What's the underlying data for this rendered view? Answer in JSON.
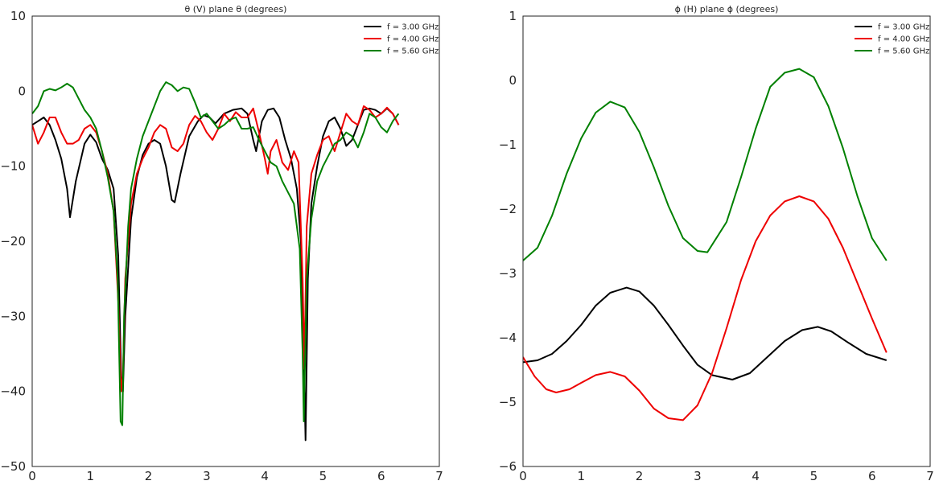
{
  "chart_data": [
    {
      "type": "line",
      "title": "θ (V) plane θ (degrees)",
      "xlabel": "",
      "ylabel": "",
      "xlim": [
        0,
        7
      ],
      "ylim": [
        -50,
        10
      ],
      "xticks": [
        0,
        1,
        2,
        3,
        4,
        5,
        6,
        7
      ],
      "yticks": [
        10,
        0,
        -10,
        -20,
        -30,
        -40,
        -50
      ],
      "xtick_labels": [
        "0",
        "1",
        "2",
        "3",
        "4",
        "5",
        "6",
        "7"
      ],
      "ytick_labels": [
        "10",
        "0",
        "−10",
        "−20",
        "−30",
        "−40",
        "−50"
      ],
      "grid": false,
      "legend": "top-right",
      "series": [
        {
          "name": "f = 3.00 GHz",
          "color": "#000000",
          "x": [
            0,
            0.1,
            0.2,
            0.3,
            0.4,
            0.5,
            0.6,
            0.65,
            0.75,
            0.9,
            1.0,
            1.1,
            1.2,
            1.3,
            1.4,
            1.48,
            1.53,
            1.56,
            1.6,
            1.7,
            1.8,
            1.9,
            2.0,
            2.1,
            2.2,
            2.3,
            2.4,
            2.45,
            2.55,
            2.7,
            2.85,
            2.95,
            3.05,
            3.15,
            3.3,
            3.45,
            3.6,
            3.7,
            3.8,
            3.85,
            3.95,
            4.05,
            4.15,
            4.25,
            4.35,
            4.45,
            4.55,
            4.62,
            4.67,
            4.7,
            4.74,
            4.8,
            4.9,
            5.0,
            5.1,
            5.2,
            5.3,
            5.4,
            5.5,
            5.6,
            5.7,
            5.8,
            5.9,
            6.0,
            6.1,
            6.2,
            6.3
          ],
          "y": [
            -4.5,
            -4.0,
            -3.5,
            -4.5,
            -6.5,
            -9.0,
            -13.0,
            -16.8,
            -12.0,
            -7.0,
            -5.8,
            -6.8,
            -9.0,
            -10.5,
            -13.0,
            -22.0,
            -38.0,
            -40.0,
            -30.0,
            -17.0,
            -11.5,
            -8.5,
            -7.0,
            -6.5,
            -7.0,
            -10.0,
            -14.5,
            -14.8,
            -11.0,
            -6.0,
            -4.0,
            -3.2,
            -3.5,
            -4.3,
            -3.0,
            -2.5,
            -2.3,
            -3.0,
            -6.5,
            -8.0,
            -4.0,
            -2.5,
            -2.3,
            -3.5,
            -6.5,
            -9.0,
            -13.0,
            -20.0,
            -35.0,
            -46.5,
            -25.0,
            -15.0,
            -10.0,
            -6.0,
            -4.0,
            -3.5,
            -5.0,
            -7.3,
            -6.5,
            -4.5,
            -2.5,
            -2.3,
            -2.5,
            -3.0,
            -2.3,
            -3.0,
            -4.5
          ]
        },
        {
          "name": "f = 4.00 GHz",
          "color": "#ee0000",
          "x": [
            0,
            0.1,
            0.2,
            0.3,
            0.4,
            0.5,
            0.6,
            0.7,
            0.8,
            0.9,
            1.0,
            1.1,
            1.2,
            1.3,
            1.4,
            1.48,
            1.53,
            1.56,
            1.6,
            1.7,
            1.8,
            1.9,
            2.0,
            2.1,
            2.2,
            2.3,
            2.4,
            2.5,
            2.6,
            2.7,
            2.8,
            2.9,
            3.0,
            3.1,
            3.2,
            3.3,
            3.4,
            3.5,
            3.6,
            3.7,
            3.8,
            3.9,
            4.0,
            4.05,
            4.1,
            4.2,
            4.3,
            4.4,
            4.5,
            4.58,
            4.65,
            4.68,
            4.72,
            4.8,
            4.9,
            5.0,
            5.1,
            5.2,
            5.3,
            5.4,
            5.5,
            5.6,
            5.7,
            5.8,
            5.9,
            6.0,
            6.1,
            6.2,
            6.3
          ],
          "y": [
            -4.5,
            -7.0,
            -5.5,
            -3.5,
            -3.5,
            -5.5,
            -7.0,
            -7.0,
            -6.5,
            -5.0,
            -4.5,
            -5.5,
            -8.0,
            -11.0,
            -16.0,
            -28.0,
            -40.0,
            -38.0,
            -25.0,
            -15.0,
            -11.0,
            -9.0,
            -7.5,
            -5.5,
            -4.5,
            -5.0,
            -7.5,
            -8.0,
            -7.0,
            -4.5,
            -3.3,
            -4.0,
            -5.5,
            -6.5,
            -5.0,
            -3.0,
            -4.0,
            -2.8,
            -3.5,
            -3.5,
            -2.3,
            -5.5,
            -9.0,
            -11.0,
            -8.0,
            -6.5,
            -9.5,
            -10.5,
            -8.0,
            -9.5,
            -25.0,
            -37.0,
            -18.0,
            -11.0,
            -8.5,
            -6.5,
            -6.0,
            -8.0,
            -5.5,
            -3.0,
            -4.0,
            -4.5,
            -2.0,
            -2.5,
            -3.5,
            -3.0,
            -2.2,
            -3.0,
            -4.5
          ]
        },
        {
          "name": "f = 5.60 GHz",
          "color": "#008000",
          "x": [
            0,
            0.1,
            0.2,
            0.3,
            0.4,
            0.5,
            0.6,
            0.7,
            0.8,
            0.9,
            1.0,
            1.1,
            1.2,
            1.3,
            1.4,
            1.47,
            1.52,
            1.55,
            1.58,
            1.65,
            1.7,
            1.8,
            1.9,
            2.0,
            2.1,
            2.2,
            2.3,
            2.4,
            2.5,
            2.6,
            2.7,
            2.8,
            2.9,
            3.0,
            3.1,
            3.2,
            3.3,
            3.4,
            3.5,
            3.6,
            3.7,
            3.8,
            3.9,
            4.0,
            4.1,
            4.2,
            4.3,
            4.4,
            4.5,
            4.6,
            4.65,
            4.67,
            4.72,
            4.8,
            4.9,
            5.0,
            5.1,
            5.2,
            5.3,
            5.4,
            5.5,
            5.6,
            5.7,
            5.8,
            5.9,
            6.0,
            6.1,
            6.2,
            6.3
          ],
          "y": [
            -3.0,
            -2.0,
            0.0,
            0.3,
            0.1,
            0.5,
            1.0,
            0.5,
            -1.0,
            -2.5,
            -3.5,
            -5.0,
            -8.0,
            -11.5,
            -16.0,
            -25.0,
            -44.0,
            -44.5,
            -30.0,
            -18.0,
            -13.0,
            -9.0,
            -6.0,
            -4.0,
            -2.0,
            0.0,
            1.2,
            0.8,
            0.0,
            0.5,
            0.3,
            -1.5,
            -3.5,
            -3.0,
            -4.0,
            -5.0,
            -4.5,
            -3.8,
            -3.5,
            -5.0,
            -5.0,
            -4.8,
            -6.5,
            -8.0,
            -9.5,
            -10.0,
            -12.0,
            -13.5,
            -15.0,
            -21.0,
            -35.0,
            -44.0,
            -25.0,
            -17.0,
            -12.0,
            -10.0,
            -8.5,
            -7.0,
            -6.5,
            -5.5,
            -6.0,
            -7.5,
            -5.5,
            -3.0,
            -3.5,
            -4.8,
            -5.5,
            -4.0,
            -3.0
          ]
        }
      ]
    },
    {
      "type": "line",
      "title": "ϕ (H) plane ϕ (degrees)",
      "xlabel": "",
      "ylabel": "",
      "xlim": [
        0,
        7
      ],
      "ylim": [
        -6,
        1
      ],
      "xticks": [
        0,
        1,
        2,
        3,
        4,
        5,
        6,
        7
      ],
      "yticks": [
        1,
        0,
        -1,
        -2,
        -3,
        -4,
        -5,
        -6
      ],
      "xtick_labels": [
        "0",
        "1",
        "2",
        "3",
        "4",
        "5",
        "6",
        "7"
      ],
      "ytick_labels": [
        "1",
        "0",
        "−1",
        "−2",
        "−3",
        "−4",
        "−5",
        "−6"
      ],
      "grid": false,
      "legend": "top-right",
      "series": [
        {
          "name": "f = 3.00 GHz",
          "color": "#000000",
          "x": [
            0,
            0.25,
            0.5,
            0.75,
            1.0,
            1.25,
            1.5,
            1.78,
            2.0,
            2.25,
            2.5,
            2.75,
            3.0,
            3.25,
            3.6,
            3.9,
            4.2,
            4.5,
            4.8,
            5.07,
            5.3,
            5.6,
            5.9,
            6.25
          ],
          "y": [
            -4.38,
            -4.35,
            -4.25,
            -4.05,
            -3.8,
            -3.5,
            -3.3,
            -3.22,
            -3.28,
            -3.5,
            -3.8,
            -4.12,
            -4.42,
            -4.58,
            -4.65,
            -4.55,
            -4.3,
            -4.05,
            -3.88,
            -3.83,
            -3.9,
            -4.08,
            -4.25,
            -4.35
          ]
        },
        {
          "name": "f = 4.00 GHz",
          "color": "#ee0000",
          "x": [
            0,
            0.2,
            0.4,
            0.57,
            0.8,
            1.0,
            1.25,
            1.5,
            1.75,
            2.0,
            2.25,
            2.5,
            2.75,
            3.0,
            3.25,
            3.5,
            3.75,
            4.0,
            4.25,
            4.5,
            4.75,
            5.0,
            5.25,
            5.5,
            5.75,
            6.0,
            6.25
          ],
          "y": [
            -4.3,
            -4.6,
            -4.8,
            -4.85,
            -4.8,
            -4.7,
            -4.58,
            -4.53,
            -4.6,
            -4.82,
            -5.1,
            -5.25,
            -5.28,
            -5.05,
            -4.55,
            -3.85,
            -3.1,
            -2.5,
            -2.1,
            -1.88,
            -1.8,
            -1.88,
            -2.15,
            -2.6,
            -3.15,
            -3.7,
            -4.23
          ]
        },
        {
          "name": "f = 5.60 GHz",
          "color": "#008000",
          "x": [
            0,
            0.25,
            0.5,
            0.75,
            1.0,
            1.25,
            1.5,
            1.75,
            2.0,
            2.25,
            2.5,
            2.75,
            3.0,
            3.17,
            3.5,
            3.75,
            4.0,
            4.25,
            4.5,
            4.75,
            5.0,
            5.25,
            5.5,
            5.75,
            6.0,
            6.25
          ],
          "y": [
            -2.8,
            -2.6,
            -2.1,
            -1.45,
            -0.9,
            -0.5,
            -0.33,
            -0.42,
            -0.8,
            -1.35,
            -1.95,
            -2.45,
            -2.65,
            -2.67,
            -2.2,
            -1.5,
            -0.75,
            -0.1,
            0.12,
            0.18,
            0.05,
            -0.4,
            -1.05,
            -1.8,
            -2.45,
            -2.8
          ]
        }
      ]
    }
  ]
}
